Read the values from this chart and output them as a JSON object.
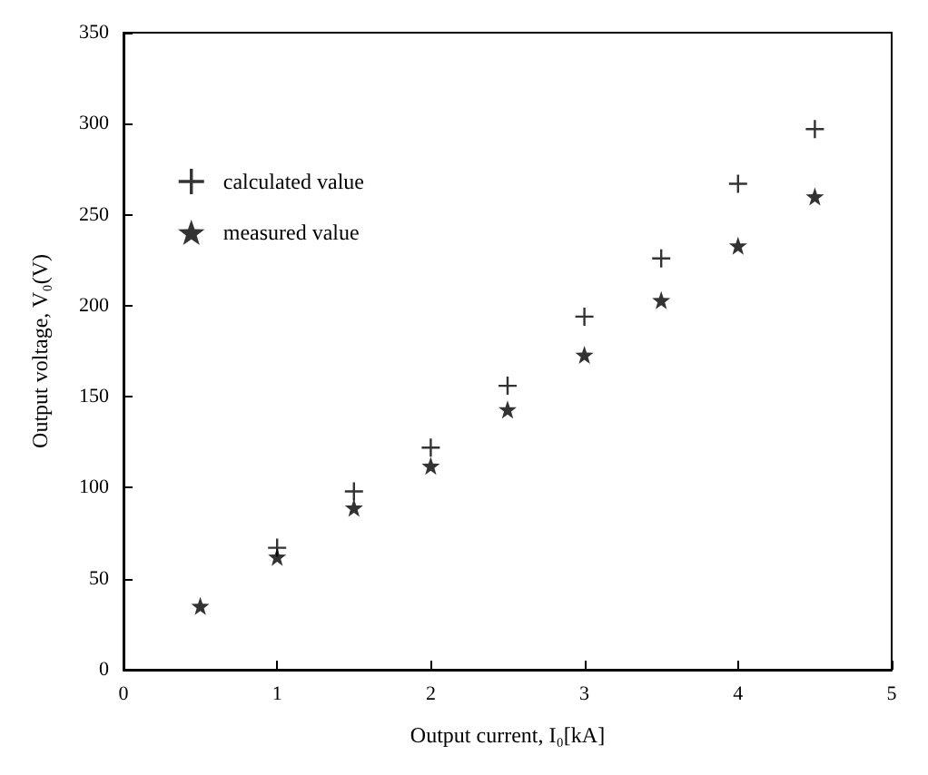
{
  "chart_data": {
    "type": "scatter",
    "xlabel": "Output current, I₀[kA]",
    "ylabel": "Output voltage, V₀(V)",
    "x": [
      0.5,
      1,
      1.5,
      2,
      2.5,
      3,
      3.5,
      4,
      4.5
    ],
    "series": [
      {
        "name": "calculated value",
        "color": "#000000",
        "marker": "cross",
        "values": [
          null,
          67,
          98,
          122,
          156,
          194,
          226,
          267,
          297
        ]
      },
      {
        "name": "measured value",
        "color": "#000000",
        "marker": "star",
        "values": [
          35,
          62,
          89,
          112,
          143,
          173,
          203,
          233,
          260
        ]
      }
    ],
    "xlim": [
      0,
      5
    ],
    "xticks": [
      0,
      1,
      2,
      3,
      4,
      5
    ],
    "ylim": [
      0,
      350
    ],
    "yticks": [
      0,
      50,
      100,
      150,
      200,
      250,
      300,
      350
    ],
    "grid": false,
    "legend": "top left"
  }
}
